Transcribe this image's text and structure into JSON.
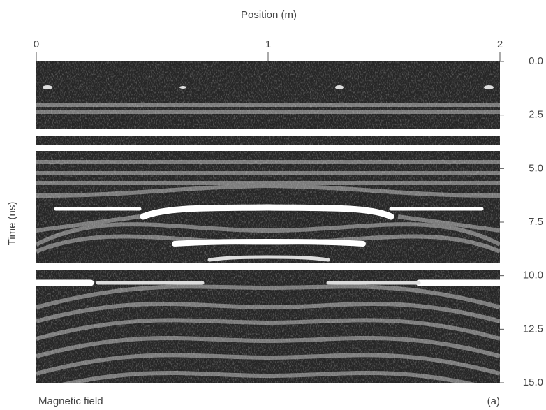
{
  "title": "Position (m)",
  "x_axis": {
    "ticks": [
      "0",
      "1",
      "2"
    ]
  },
  "y_axis": {
    "label": "Time (ns)",
    "ticks": [
      "0.0",
      "2.5",
      "5.0",
      "7.5",
      "10.0",
      "12.5",
      "15.0"
    ]
  },
  "caption": "Magnetic field",
  "panel_label": "(a)"
}
